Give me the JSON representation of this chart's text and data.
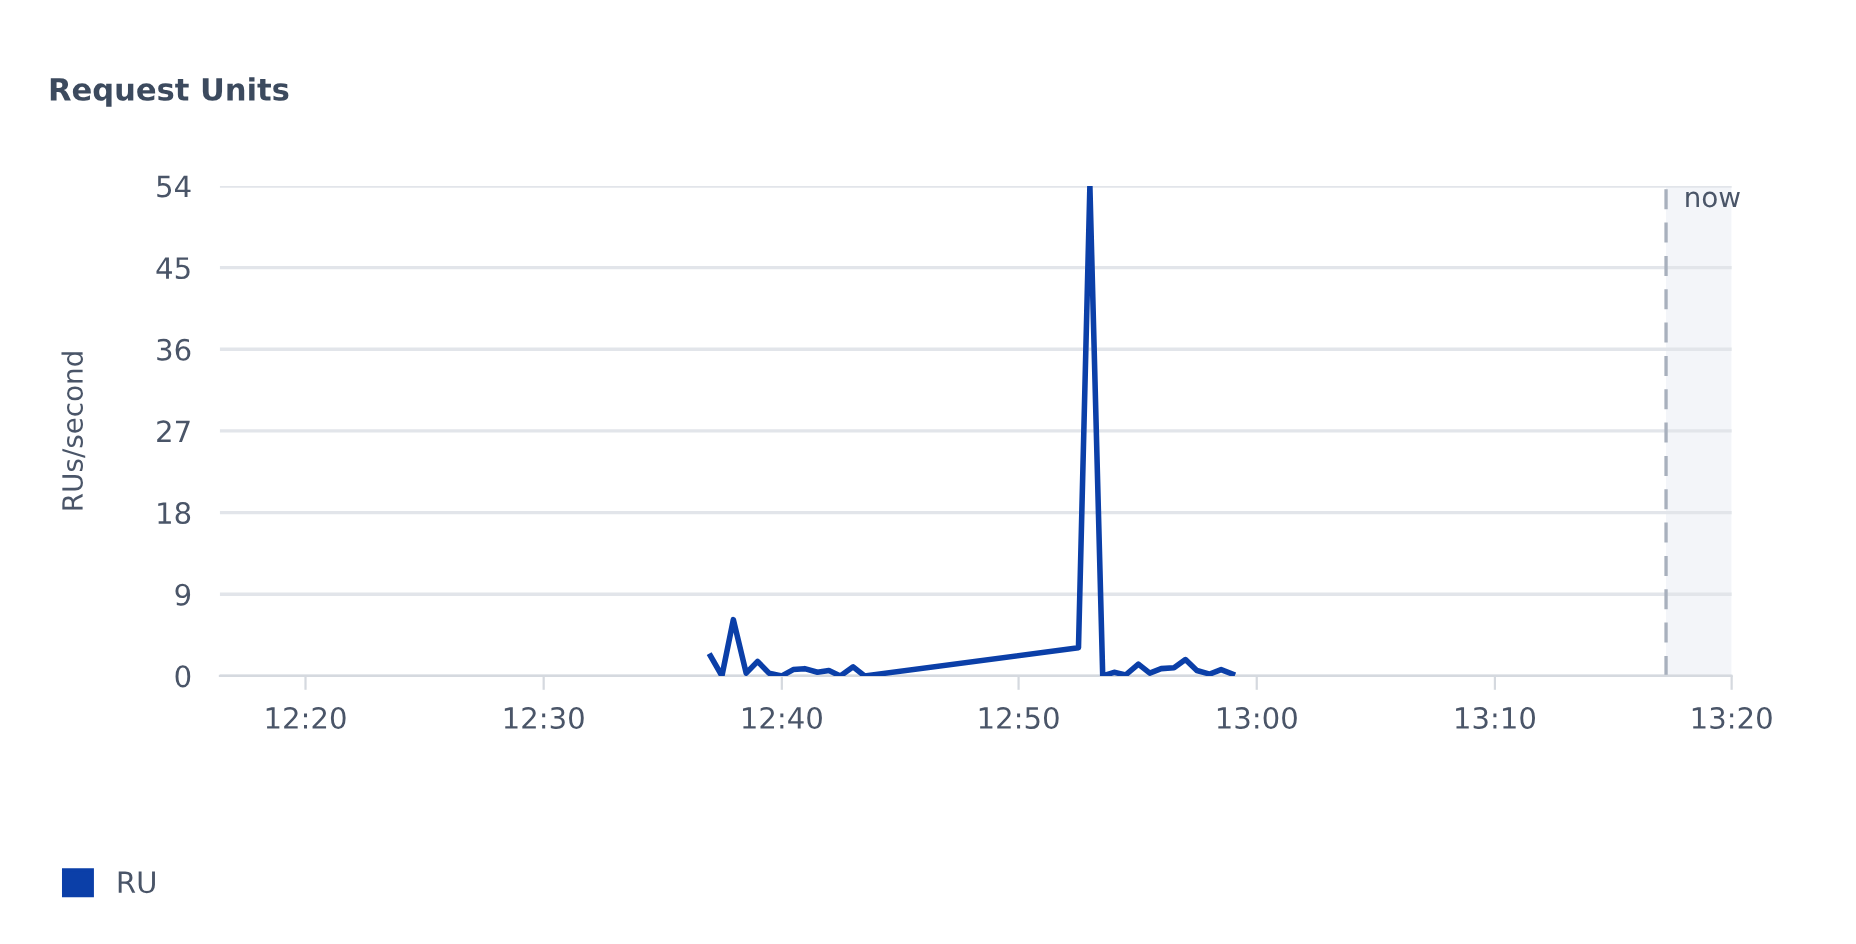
{
  "chart_data": {
    "type": "line",
    "title": "Request Units",
    "ylabel": "RUs/second",
    "xlim": [
      12.273,
      13.333
    ],
    "xticks": [
      {
        "value": 12.333,
        "label": "12:20"
      },
      {
        "value": 12.5,
        "label": "12:30"
      },
      {
        "value": 12.667,
        "label": "12:40"
      },
      {
        "value": 12.833,
        "label": "12:50"
      },
      {
        "value": 13.0,
        "label": "13:00"
      },
      {
        "value": 13.167,
        "label": "13:10"
      },
      {
        "value": 13.333,
        "label": "13:20"
      }
    ],
    "ylim": [
      0,
      54
    ],
    "yticks": [
      0,
      9,
      18,
      27,
      36,
      45,
      54
    ],
    "grid": "y",
    "legend": "bottom left",
    "x": [
      12.617,
      12.625,
      12.633,
      12.642,
      12.65,
      12.658,
      12.667,
      12.675,
      12.683,
      12.692,
      12.7,
      12.708,
      12.717,
      12.725,
      12.875,
      12.883,
      12.892,
      12.9,
      12.908,
      12.917,
      12.925,
      12.933,
      12.942,
      12.95,
      12.958,
      12.967,
      12.975,
      12.983
    ],
    "series": [
      {
        "name": "RU",
        "color": "#0b3fa8",
        "values": [
          2.2,
          0,
          6.2,
          0.3,
          1.6,
          0.3,
          0,
          0.7,
          0.8,
          0.4,
          0.6,
          0,
          1.0,
          0,
          3.1,
          54,
          0,
          0.4,
          0.1,
          1.3,
          0.3,
          0.8,
          0.9,
          1.8,
          0.6,
          0.2,
          0.7,
          0.2
        ]
      }
    ],
    "ref_lines": [
      {
        "axis": "x",
        "value": 13.287,
        "label": "now",
        "color": "#a8b0bd",
        "line_style": "dashed"
      }
    ],
    "bands": [
      {
        "axis": "x",
        "from": 13.287,
        "to": 13.333,
        "color": "#f3f5f9"
      }
    ]
  }
}
